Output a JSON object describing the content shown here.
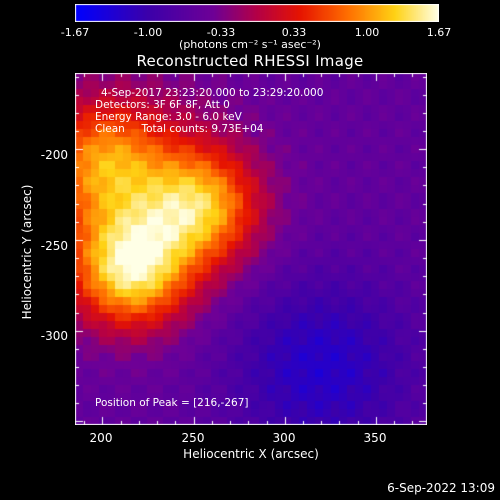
{
  "colorbar": {
    "min": -1.67,
    "max": 1.67,
    "ticks": [
      "-1.67",
      "-1.00",
      "-0.33",
      "0.33",
      "1.00",
      "1.67"
    ],
    "units": "(photons cm⁻² s⁻¹ asec⁻²)"
  },
  "chart_data": {
    "type": "heatmap",
    "title": "Reconstructed RHESSI Image",
    "xlabel": "Heliocentric X (arcsec)",
    "ylabel": "Heliocentric Y (arcsec)",
    "xlim": [
      185,
      378
    ],
    "ylim": [
      -352,
      -158
    ],
    "xticks": [
      200,
      250,
      300,
      350
    ],
    "yticks": [
      -200,
      -250,
      -300
    ],
    "colormap": "rhessi-blue-purple-red-yellow-white",
    "annotations": [
      "4-Sep-2017 23:23:20.000 to 23:29:20.000",
      "Detectors: 3F 6F 8F, Att 0",
      "Energy Range: 3.0 - 6.0 keV",
      "Clean     Total counts: 9.73E+04"
    ],
    "peak_label": "Position of Peak = [216,-267]",
    "peak": [
      216,
      -267
    ],
    "sources": [
      {
        "x": 216,
        "y": -267,
        "amplitude": 1.67
      },
      {
        "x": 255,
        "y": -232,
        "amplitude": 1.35
      },
      {
        "x": 200,
        "y": -205,
        "amplitude": 0.9
      }
    ]
  },
  "datestamp": "6-Sep-2022 13:09"
}
